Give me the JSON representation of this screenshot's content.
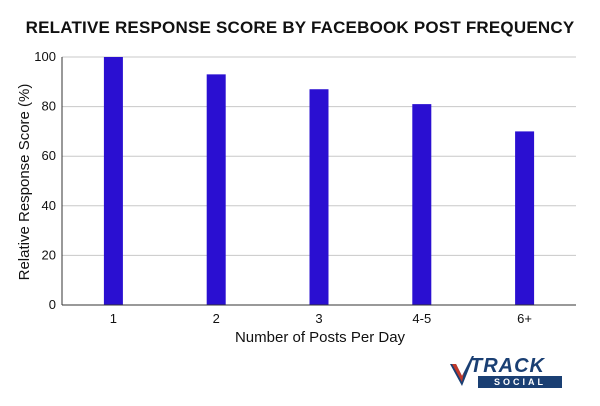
{
  "chart_data": {
    "type": "bar",
    "title": "RELATIVE RESPONSE SCORE BY FACEBOOK POST FREQUENCY",
    "xlabel": "Number of Posts Per Day",
    "ylabel": "Relative Response Score (%)",
    "categories": [
      "1",
      "2",
      "3",
      "4-5",
      "6+"
    ],
    "values": [
      100,
      93,
      87,
      81,
      70
    ],
    "ylim": [
      0,
      100
    ],
    "yticks": [
      0,
      20,
      40,
      60,
      80,
      100
    ],
    "grid": true,
    "bar_color": "#2a0fd1",
    "grid_color": "#c8c8c8"
  },
  "logo": {
    "text": "TRACK",
    "subtext": "SOCIAL",
    "color": "#1a3f73",
    "accent": "#c0392b"
  }
}
